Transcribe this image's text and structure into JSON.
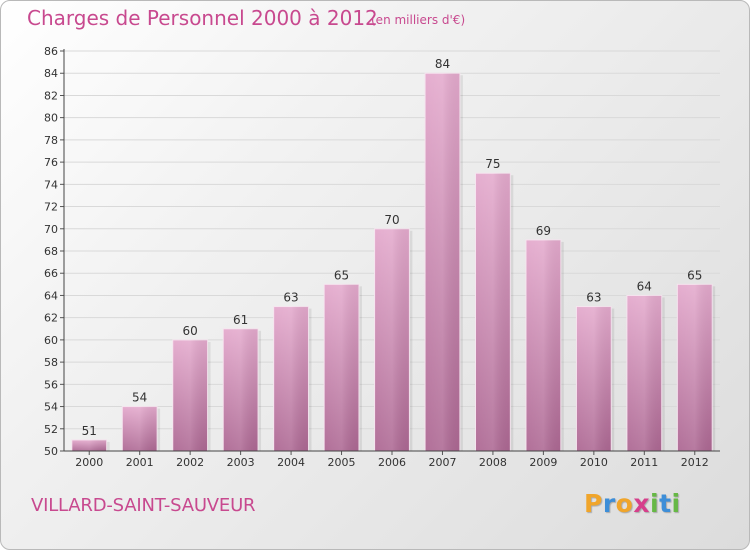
{
  "header": {
    "title": "Charges de Personnel 2000 à 2012",
    "subtitle": "(en milliers d'€)"
  },
  "footer": {
    "city": "VILLARD-SAINT-SAUVEUR",
    "logo": {
      "text": "Proxiti",
      "letters": [
        {
          "char": "P",
          "color": "#f0a52b"
        },
        {
          "char": "r",
          "color": "#3d8ed8"
        },
        {
          "char": "o",
          "color": "#f0a52b"
        },
        {
          "char": "x",
          "color": "#d63f8b"
        },
        {
          "char": "i",
          "color": "#66b845"
        },
        {
          "char": "t",
          "color": "#3d8ed8"
        },
        {
          "char": "i",
          "color": "#66b845"
        }
      ]
    }
  },
  "colors": {
    "accent": "#c8498f",
    "bar_top": "#e2a7cb",
    "bar_bottom": "#b06a96",
    "grid": "#d8d8d8",
    "axis": "#444444"
  },
  "chart_data": {
    "type": "bar",
    "categories": [
      "2000",
      "2001",
      "2002",
      "2003",
      "2004",
      "2005",
      "2006",
      "2007",
      "2008",
      "2009",
      "2010",
      "2011",
      "2012"
    ],
    "values": [
      51,
      54,
      60,
      61,
      63,
      65,
      70,
      84,
      75,
      69,
      63,
      64,
      65
    ],
    "title": "Charges de Personnel 2000 à 2012",
    "subtitle": "(en milliers d'€)",
    "xlabel": "",
    "ylabel": "",
    "ylim": [
      50,
      86
    ],
    "ytick_step": 2,
    "grid": true,
    "data_labels": true
  }
}
